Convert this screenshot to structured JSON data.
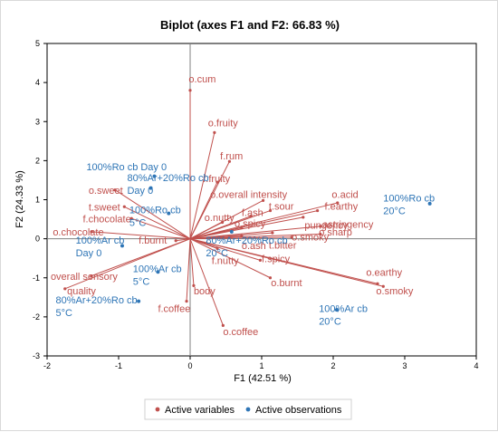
{
  "colors": {
    "variable": "#c0504d",
    "observation": "#2e75b6",
    "axis": "#808080"
  },
  "chart_data": {
    "type": "scatter",
    "title": "Biplot (axes F1 and F2: 66.83 %)",
    "xlabel": "F1 (42.51 %)",
    "ylabel": "F2 (24.33 %)",
    "xlim": [
      -2,
      4
    ],
    "ylim": [
      -3,
      5
    ],
    "x_ticks": [
      "-2",
      "-1",
      "0",
      "1",
      "2",
      "3",
      "4"
    ],
    "y_ticks": [
      "-3",
      "-2",
      "-1",
      "0",
      "1",
      "2",
      "3",
      "4",
      "5"
    ],
    "grid": false,
    "legend_position": "bottom",
    "legend": [
      "Active variables",
      "Active observations"
    ],
    "variables": [
      {
        "label": "o.cum",
        "x": 0.0,
        "y": 3.8,
        "lx": -0.02,
        "ly": 4.0
      },
      {
        "label": "o.fruity",
        "x": 0.34,
        "y": 2.72,
        "lx": 0.25,
        "ly": 2.88
      },
      {
        "label": "f.rum",
        "x": 0.55,
        "y": 1.98,
        "lx": 0.42,
        "ly": 2.03
      },
      {
        "label": "f.fruity",
        "x": 0.38,
        "y": 1.45,
        "lx": 0.18,
        "ly": 1.45
      },
      {
        "label": "o.overall intensity",
        "x": 1.02,
        "y": 0.98,
        "lx": 0.28,
        "ly": 1.05
      },
      {
        "label": "o.acid",
        "x": 2.06,
        "y": 0.92,
        "lx": 1.98,
        "ly": 1.05
      },
      {
        "label": "f.earthy",
        "x": 1.78,
        "y": 0.72,
        "lx": 1.88,
        "ly": 0.75
      },
      {
        "label": "t.sour",
        "x": 1.12,
        "y": 0.72,
        "lx": 1.1,
        "ly": 0.75
      },
      {
        "label": "f.ash",
        "x": 0.85,
        "y": 0.58,
        "lx": 0.72,
        "ly": 0.58
      },
      {
        "label": "pungency",
        "x": 1.58,
        "y": 0.55,
        "lx": 1.6,
        "ly": 0.26
      },
      {
        "label": "o.nutty",
        "x": 0.45,
        "y": 0.42,
        "lx": 0.2,
        "ly": 0.45
      },
      {
        "label": "astringency",
        "x": 1.82,
        "y": 0.32,
        "lx": 1.85,
        "ly": 0.28
      },
      {
        "label": "o.spicy",
        "x": 0.72,
        "y": 0.28,
        "lx": 0.62,
        "ly": 0.3
      },
      {
        "label": "o.sharp",
        "x": 1.82,
        "y": 0.12,
        "lx": 1.8,
        "ly": 0.08
      },
      {
        "label": "o.ash",
        "x": 0.72,
        "y": 0.08,
        "lx": 0.72,
        "ly": -0.26
      },
      {
        "label": "t.bitter",
        "x": 1.15,
        "y": 0.15,
        "lx": 1.1,
        "ly": -0.25
      },
      {
        "label": "o.smoky",
        "x": 1.42,
        "y": 0.04,
        "lx": 1.42,
        "ly": -0.04
      },
      {
        "label": "f.nutty",
        "x": 0.38,
        "y": -0.25,
        "lx": 0.3,
        "ly": -0.65
      },
      {
        "label": "f.spicy",
        "x": 0.98,
        "y": -0.55,
        "lx": 1.0,
        "ly": -0.6
      },
      {
        "label": "o.burnt",
        "x": 1.12,
        "y": -1.0,
        "lx": 1.13,
        "ly": -1.22
      },
      {
        "label": "o.earthy",
        "x": 2.62,
        "y": -1.15,
        "lx": 2.46,
        "ly": -0.95
      },
      {
        "label": "o.smoky",
        "x": 2.7,
        "y": -1.22,
        "lx": 2.6,
        "ly": -1.42
      },
      {
        "label": "body",
        "x": 0.05,
        "y": -1.2,
        "lx": 0.05,
        "ly": -1.42
      },
      {
        "label": "f.coffee",
        "x": -0.05,
        "y": -1.6,
        "lx": -0.45,
        "ly": -1.88
      },
      {
        "label": "o.coffee",
        "x": 0.46,
        "y": -2.22,
        "lx": 0.46,
        "ly": -2.47
      },
      {
        "label": "o.sweet",
        "x": -1.05,
        "y": 1.25,
        "lx": -1.42,
        "ly": 1.15
      },
      {
        "label": "t.sweet",
        "x": -0.92,
        "y": 0.82,
        "lx": -1.42,
        "ly": 0.72
      },
      {
        "label": "f.chocolate",
        "x": -0.82,
        "y": 0.52,
        "lx": -1.5,
        "ly": 0.42
      },
      {
        "label": "o.chocolate",
        "x": -1.38,
        "y": 0.18,
        "lx": -1.92,
        "ly": 0.08
      },
      {
        "label": "f.burnt",
        "x": -0.2,
        "y": -0.05,
        "lx": -0.72,
        "ly": -0.13
      },
      {
        "label": "overall sensory",
        "x": -1.38,
        "y": -0.95,
        "lx": -1.95,
        "ly": -1.05
      },
      {
        "label": "quality",
        "x": -1.75,
        "y": -1.28,
        "lx": -1.72,
        "ly": -1.42
      }
    ],
    "observations": [
      {
        "label": [
          "100%Ro cb Day 0"
        ],
        "x": -0.5,
        "y": 1.6,
        "lx": -1.45,
        "ly": 1.75
      },
      {
        "label": [
          "80%Ar+20%Ro cb",
          "Day 0"
        ],
        "x": -0.55,
        "y": 1.3,
        "lx": -0.88,
        "ly": 1.48
      },
      {
        "label": [
          "100%Ro cb",
          "5°C"
        ],
        "x": -0.3,
        "y": 0.65,
        "lx": -0.85,
        "ly": 0.65
      },
      {
        "label": [
          "100%Ar cb",
          "Day 0"
        ],
        "x": -0.95,
        "y": -0.18,
        "lx": -1.6,
        "ly": -0.12
      },
      {
        "label": [
          "100%Ar cb",
          "5°C"
        ],
        "x": -0.45,
        "y": -0.85,
        "lx": -0.8,
        "ly": -0.85
      },
      {
        "label": [
          "80%Ar+20%Ro cb",
          "5°C"
        ],
        "x": -0.72,
        "y": -1.6,
        "lx": -1.88,
        "ly": -1.65
      },
      {
        "label": [
          "80%Ar+20%Ro cb",
          "20°C"
        ],
        "x": 0.58,
        "y": 0.18,
        "lx": 0.22,
        "ly": -0.12
      },
      {
        "label": [
          "100%Ro cb",
          "20°C"
        ],
        "x": 3.35,
        "y": 0.9,
        "lx": 2.7,
        "ly": 0.95
      },
      {
        "label": [
          "100%Ar cb",
          "20°C"
        ],
        "x": 2.05,
        "y": -1.82,
        "lx": 1.8,
        "ly": -1.88
      }
    ]
  }
}
